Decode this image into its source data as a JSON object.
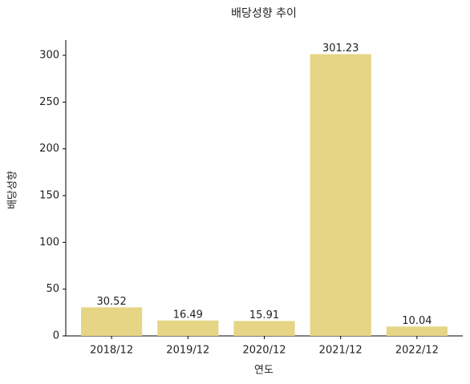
{
  "chart_data": {
    "type": "bar",
    "title": "배당성향 추이",
    "x_label": "연도",
    "y_label": "배당성향",
    "categories": [
      "2018/12",
      "2019/12",
      "2020/12",
      "2021/12",
      "2022/12"
    ],
    "values": [
      30.52,
      16.49,
      15.91,
      301.23,
      10.04
    ],
    "color": "#e5d585",
    "ylim": [
      0,
      316.3
    ],
    "yticks": [
      0,
      50,
      100,
      150,
      200,
      250,
      300
    ],
    "grid": false
  }
}
